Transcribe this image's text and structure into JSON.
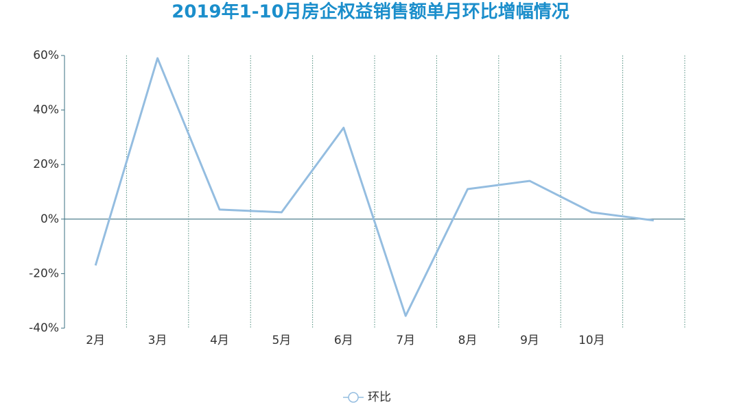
{
  "chart_data": {
    "type": "line",
    "title": "2019年1-10月房企权益销售额单月环比增幅情况",
    "categories": [
      "2月",
      "3月",
      "4月",
      "5月",
      "6月",
      "7月",
      "8月",
      "9月",
      "10月",
      null
    ],
    "series": [
      {
        "name": "环比",
        "color": "#94bde0",
        "values": [
          -17,
          59,
          3.5,
          2.5,
          33.5,
          -35.5,
          11,
          14,
          2.5,
          -0.5
        ]
      }
    ],
    "ylim": [
      -40,
      60
    ],
    "yticks": [
      {
        "value": -40,
        "label": "-40%"
      },
      {
        "value": -20,
        "label": "-20%"
      },
      {
        "value": 0,
        "label": "0%"
      },
      {
        "value": 20,
        "label": "20%"
      },
      {
        "value": 40,
        "label": "40%"
      },
      {
        "value": 60,
        "label": "60%"
      }
    ],
    "grid": true,
    "legend": "bottom"
  }
}
